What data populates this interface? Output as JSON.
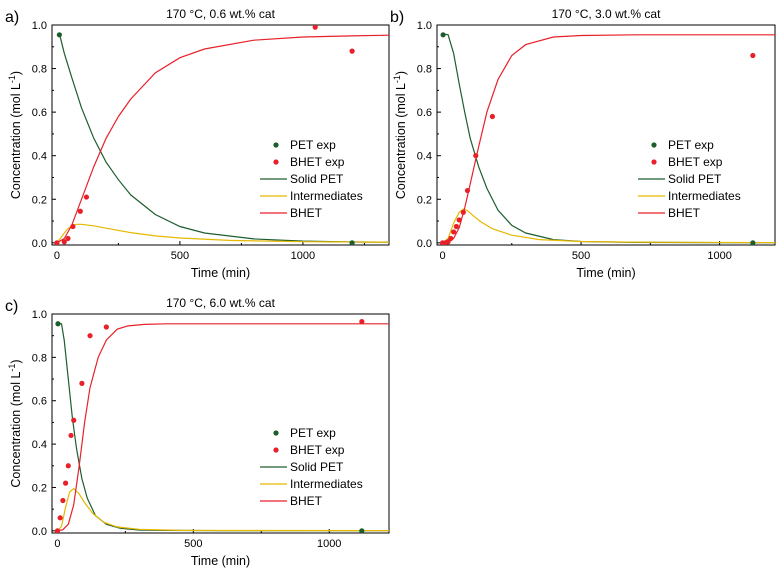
{
  "chart_data": [
    {
      "type": "line",
      "panel_label": "a)",
      "title": "170 °C, 0.6 wt.% cat",
      "xlabel": "Time (min)",
      "ylabel_main": "Concentration (mol L",
      "ylabel_sup": "-1",
      "ylabel_end": ")",
      "xlim": [
        -20,
        1350
      ],
      "ylim": [
        -0.01,
        1.0
      ],
      "xticks": [
        0,
        500,
        1000
      ],
      "xtick_labels": [
        "0",
        "500",
        "1000"
      ],
      "yticks": [
        0,
        0.2,
        0.4,
        0.6,
        0.8,
        1.0
      ],
      "ytick_labels": [
        "0.0",
        "0.2",
        "0.4",
        "0.6",
        "0.8",
        "1.0"
      ],
      "legend_position": "right",
      "series": [
        {
          "name": "PET exp",
          "kind": "scatter",
          "color": "#1d5e2e",
          "x": [
            10,
            1200
          ],
          "y": [
            0.955,
            0.0
          ]
        },
        {
          "name": "BHET exp",
          "kind": "scatter",
          "color": "#e8202a",
          "x": [
            0,
            30,
            45,
            65,
            95,
            120,
            1050,
            1200
          ],
          "y": [
            0.0,
            0.005,
            0.02,
            0.075,
            0.145,
            0.21,
            0.99,
            0.88
          ]
        },
        {
          "name": "Solid PET",
          "kind": "line",
          "color": "#1d5e2e",
          "x": [
            10,
            30,
            60,
            100,
            150,
            200,
            250,
            300,
            400,
            500,
            600,
            800,
            1000,
            1200,
            1350
          ],
          "y": [
            0.96,
            0.87,
            0.76,
            0.62,
            0.48,
            0.37,
            0.29,
            0.22,
            0.13,
            0.075,
            0.045,
            0.018,
            0.008,
            0.004,
            0.003
          ]
        },
        {
          "name": "Intermediates",
          "kind": "line",
          "color": "#e6b800",
          "x": [
            0,
            20,
            40,
            60,
            80,
            100,
            150,
            200,
            300,
            400,
            500,
            700,
            1000,
            1350
          ],
          "y": [
            0.0,
            0.03,
            0.06,
            0.078,
            0.085,
            0.085,
            0.078,
            0.067,
            0.047,
            0.032,
            0.022,
            0.011,
            0.005,
            0.003
          ]
        },
        {
          "name": "BHET",
          "kind": "line",
          "color": "#e8202a",
          "x": [
            0,
            30,
            60,
            100,
            150,
            200,
            250,
            300,
            400,
            500,
            600,
            800,
            1000,
            1200,
            1350
          ],
          "y": [
            0.0,
            0.02,
            0.08,
            0.2,
            0.35,
            0.48,
            0.58,
            0.66,
            0.78,
            0.85,
            0.89,
            0.93,
            0.945,
            0.95,
            0.953
          ]
        }
      ]
    },
    {
      "type": "line",
      "panel_label": "b)",
      "title": "170 °C, 3.0 wt.% cat",
      "xlabel": "Time (min)",
      "ylabel_main": "Concentration (mol L",
      "ylabel_sup": "-1",
      "ylabel_end": ")",
      "xlim": [
        -20,
        1200
      ],
      "ylim": [
        -0.01,
        1.0
      ],
      "xticks": [
        0,
        500,
        1000
      ],
      "xtick_labels": [
        "0",
        "500",
        "1000"
      ],
      "yticks": [
        0,
        0.2,
        0.4,
        0.6,
        0.8,
        1.0
      ],
      "ytick_labels": [
        "0.0",
        "0.2",
        "0.4",
        "0.6",
        "0.8",
        "1.0"
      ],
      "legend_position": "right",
      "series": [
        {
          "name": "PET exp",
          "kind": "scatter",
          "color": "#1d5e2e",
          "x": [
            2,
            1120
          ],
          "y": [
            0.955,
            0.0
          ]
        },
        {
          "name": "BHET exp",
          "kind": "scatter",
          "color": "#e8202a",
          "x": [
            0,
            10,
            20,
            30,
            40,
            50,
            60,
            75,
            90,
            120,
            180,
            1120
          ],
          "y": [
            0.0,
            0.0,
            0.005,
            0.02,
            0.05,
            0.075,
            0.105,
            0.14,
            0.24,
            0.4,
            0.58,
            0.86
          ]
        },
        {
          "name": "Solid PET",
          "kind": "line",
          "color": "#1d5e2e",
          "x": [
            0,
            20,
            40,
            60,
            80,
            100,
            130,
            160,
            200,
            250,
            300,
            400,
            500,
            700,
            1000,
            1200
          ],
          "y": [
            0.96,
            0.955,
            0.87,
            0.73,
            0.6,
            0.48,
            0.35,
            0.25,
            0.15,
            0.08,
            0.045,
            0.015,
            0.006,
            0.002,
            0.001,
            0.001
          ]
        },
        {
          "name": "Intermediates",
          "kind": "line",
          "color": "#e6b800",
          "x": [
            0,
            20,
            40,
            60,
            75,
            90,
            110,
            140,
            180,
            250,
            350,
            500,
            700,
            1200
          ],
          "y": [
            0.0,
            0.02,
            0.09,
            0.14,
            0.155,
            0.148,
            0.125,
            0.095,
            0.065,
            0.035,
            0.015,
            0.006,
            0.003,
            0.001
          ]
        },
        {
          "name": "BHET",
          "kind": "line",
          "color": "#e8202a",
          "x": [
            0,
            20,
            40,
            60,
            80,
            100,
            130,
            160,
            200,
            250,
            300,
            400,
            500,
            700,
            1000,
            1200
          ],
          "y": [
            0.0,
            0.002,
            0.02,
            0.07,
            0.16,
            0.27,
            0.44,
            0.6,
            0.75,
            0.86,
            0.91,
            0.945,
            0.952,
            0.955,
            0.955,
            0.955
          ]
        }
      ]
    },
    {
      "type": "line",
      "panel_label": "c)",
      "title": "170 °C, 6.0 wt.% cat",
      "xlabel": "Time (min)",
      "ylabel_main": "Concentration (mol L",
      "ylabel_sup": "-1",
      "ylabel_end": ")",
      "xlim": [
        -20,
        1220
      ],
      "ylim": [
        -0.01,
        1.0
      ],
      "xticks": [
        0,
        500,
        1000
      ],
      "xtick_labels": [
        "0",
        "500",
        "1000"
      ],
      "yticks": [
        0,
        0.2,
        0.4,
        0.6,
        0.8,
        1.0
      ],
      "ytick_labels": [
        "0.0",
        "0.2",
        "0.4",
        "0.6",
        "0.8",
        "1.0"
      ],
      "legend_position": "right",
      "series": [
        {
          "name": "PET exp",
          "kind": "scatter",
          "color": "#1d5e2e",
          "x": [
            2,
            1120
          ],
          "y": [
            0.955,
            0.0
          ]
        },
        {
          "name": "BHET exp",
          "kind": "scatter",
          "color": "#e8202a",
          "x": [
            0,
            10,
            20,
            30,
            40,
            50,
            60,
            90,
            120,
            180,
            1120
          ],
          "y": [
            0.0,
            0.06,
            0.14,
            0.22,
            0.3,
            0.44,
            0.51,
            0.68,
            0.9,
            0.94,
            0.965
          ]
        },
        {
          "name": "Solid PET",
          "kind": "line",
          "color": "#1d5e2e",
          "x": [
            0,
            15,
            25,
            40,
            55,
            70,
            90,
            110,
            140,
            180,
            230,
            300,
            400,
            600,
            1000,
            1220
          ],
          "y": [
            0.96,
            0.955,
            0.88,
            0.7,
            0.52,
            0.38,
            0.24,
            0.15,
            0.07,
            0.03,
            0.012,
            0.004,
            0.002,
            0.001,
            0.001,
            0.001
          ]
        },
        {
          "name": "Intermediates",
          "kind": "line",
          "color": "#e6b800",
          "x": [
            0,
            15,
            30,
            45,
            60,
            80,
            100,
            130,
            170,
            220,
            300,
            450,
            1220
          ],
          "y": [
            0.0,
            0.02,
            0.11,
            0.18,
            0.195,
            0.17,
            0.13,
            0.08,
            0.04,
            0.018,
            0.007,
            0.002,
            0.001
          ]
        },
        {
          "name": "BHET",
          "kind": "line",
          "color": "#e8202a",
          "x": [
            0,
            20,
            40,
            60,
            80,
            100,
            120,
            150,
            180,
            220,
            260,
            320,
            400,
            600,
            1000,
            1220
          ],
          "y": [
            0.0,
            0.005,
            0.03,
            0.12,
            0.3,
            0.5,
            0.66,
            0.8,
            0.88,
            0.93,
            0.945,
            0.952,
            0.955,
            0.955,
            0.955,
            0.955
          ]
        }
      ]
    }
  ]
}
